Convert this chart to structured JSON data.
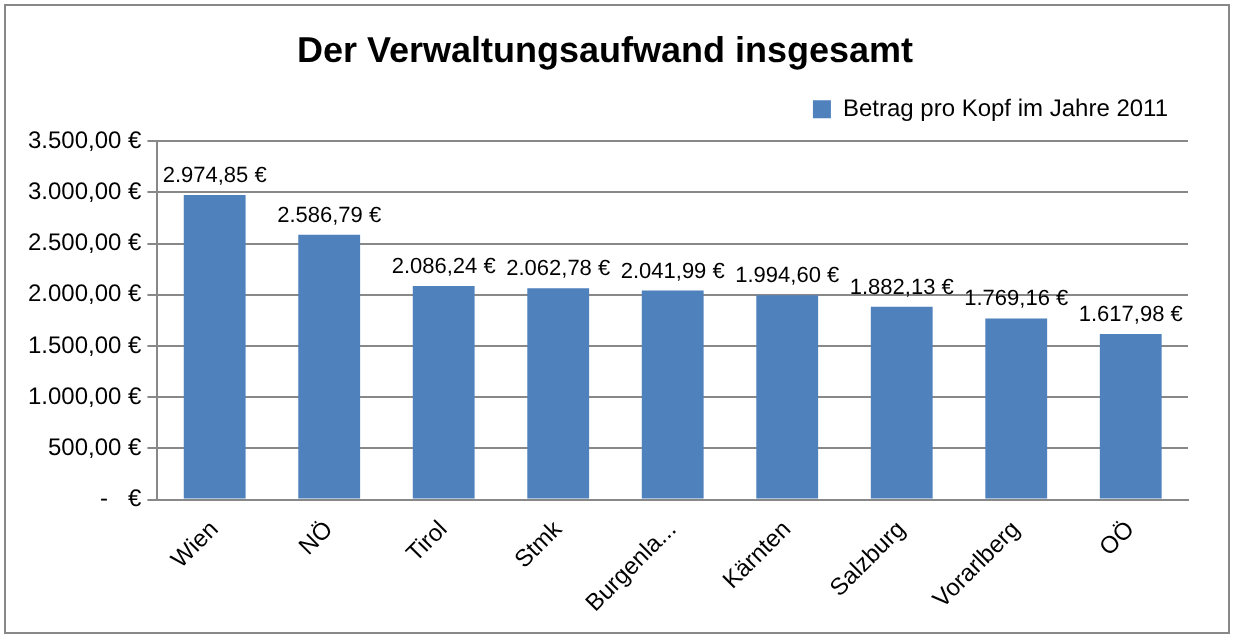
{
  "chart_data": {
    "type": "bar",
    "title": "Der Verwaltungsaufwand insgesamt",
    "categories": [
      "Wien",
      "NÖ",
      "Tirol",
      "Stmk",
      "Burgenla...",
      "Kärnten",
      "Salzburg",
      "Vorarlberg",
      "OÖ"
    ],
    "series": [
      {
        "name": "Betrag pro Kopf im Jahre 2011",
        "color": "#4f81bd",
        "values": [
          2974.85,
          2586.79,
          2086.24,
          2062.78,
          2041.99,
          1994.6,
          1882.13,
          1769.16,
          1617.98
        ],
        "value_labels": [
          "2.974,85 €",
          "2.586,79 €",
          "2.086,24 €",
          "2.062,78 €",
          "2.041,99 €",
          "1.994,60 €",
          "1.882,13 €",
          "1.769,16 €",
          "1.617,98 €"
        ]
      }
    ],
    "ylim": [
      0,
      3500
    ],
    "yticks": [
      {
        "value": 0,
        "label": "-   €"
      },
      {
        "value": 500,
        "label": "500,00 €"
      },
      {
        "value": 1000,
        "label": "1.000,00 €"
      },
      {
        "value": 1500,
        "label": "1.500,00 €"
      },
      {
        "value": 2000,
        "label": "2.000,00 €"
      },
      {
        "value": 2500,
        "label": "2.500,00 €"
      },
      {
        "value": 3000,
        "label": "3.000,00 €"
      },
      {
        "value": 3500,
        "label": "3.500,00 €"
      }
    ],
    "grid": "y",
    "legend": "top right"
  }
}
